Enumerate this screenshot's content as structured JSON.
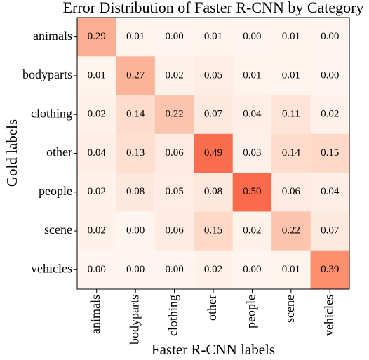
{
  "chart_data": {
    "type": "heatmap",
    "title": "Error Distribution of Faster R-CNN by Category",
    "xlabel": "Faster R-CNN labels",
    "ylabel": "Gold labels",
    "x_categories": [
      "animals",
      "bodyparts",
      "clothing",
      "other",
      "people",
      "scene",
      "vehicles"
    ],
    "y_categories": [
      "animals",
      "bodyparts",
      "clothing",
      "other",
      "people",
      "scene",
      "vehicles"
    ],
    "values": [
      [
        0.29,
        0.01,
        0,
        0.01,
        0,
        0.01,
        0
      ],
      [
        0.01,
        0.27,
        0.02,
        0.05,
        0.01,
        0.01,
        0
      ],
      [
        0.02,
        0.14,
        0.22,
        0.07,
        0.04,
        0.11,
        0.02
      ],
      [
        0.04,
        0.13,
        0.06,
        0.49,
        0.03,
        0.14,
        0.15
      ],
      [
        0.02,
        0.08,
        0.05,
        0.08,
        0.5,
        0.06,
        0.04
      ],
      [
        0.02,
        0,
        0.06,
        0.15,
        0.02,
        0.22,
        0.07
      ],
      [
        0,
        0,
        0,
        0.02,
        0,
        0.01,
        0.39
      ]
    ],
    "value_labels": [
      [
        "0.29",
        "0.01",
        "0.00",
        "0.01",
        "0.00",
        "0.01",
        "0.00"
      ],
      [
        "0.01",
        "0.27",
        "0.02",
        "0.05",
        "0.01",
        "0.01",
        "0.00"
      ],
      [
        "0.02",
        "0.14",
        "0.22",
        "0.07",
        "0.04",
        "0.11",
        "0.02"
      ],
      [
        "0.04",
        "0.13",
        "0.06",
        "0.49",
        "0.03",
        "0.14",
        "0.15"
      ],
      [
        "0.02",
        "0.08",
        "0.05",
        "0.08",
        "0.50",
        "0.06",
        "0.04"
      ],
      [
        "0.02",
        "0.00",
        "0.06",
        "0.15",
        "0.02",
        "0.22",
        "0.07"
      ],
      [
        "0.00",
        "0.00",
        "0.00",
        "0.02",
        "0.00",
        "0.01",
        "0.39"
      ]
    ],
    "colormap": [
      "#fff5f0",
      "#fee0d2",
      "#fcbba1",
      "#fc9272",
      "#fb6a4a",
      "#ef3b2c",
      "#cb181d",
      "#a50f15",
      "#67000d"
    ],
    "clim": [
      0,
      1
    ]
  }
}
